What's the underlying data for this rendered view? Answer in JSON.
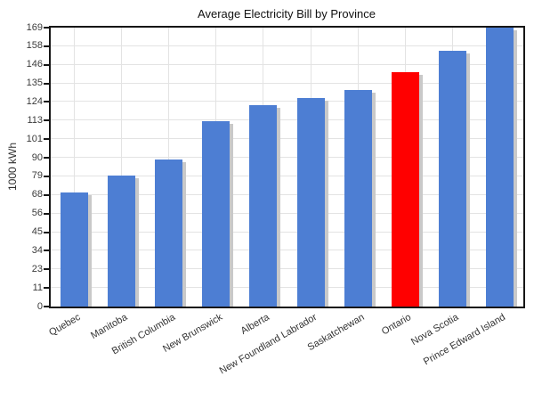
{
  "chart_data": {
    "type": "bar",
    "title": "Average Electricity Bill by Province",
    "xlabel": "",
    "ylabel": "1000 kWh",
    "categories": [
      "Quebec",
      "Manitoba",
      "British Columbia",
      "New Brunswick",
      "Alberta",
      "New Foundland Labrador",
      "Saskatchewan",
      "Ontario",
      "Nova Scotia",
      "Prince Edward Island"
    ],
    "values": [
      69,
      79,
      89,
      112,
      122,
      126,
      131,
      142,
      155,
      169
    ],
    "yticks": [
      "0",
      "11",
      "23",
      "34",
      "45",
      "56",
      "68",
      "79",
      "90",
      "101",
      "113",
      "124",
      "135",
      "146",
      "158",
      "169"
    ],
    "ylim": [
      0,
      168.75
    ],
    "grid": true,
    "legend": false,
    "x_tick_rotation_deg": 30,
    "bar_color": "#4d7ed3",
    "highlight": {
      "category": "Ontario",
      "color": "#ff0000"
    },
    "shadow_color": "#c9c9c9",
    "axis_color": "#161616",
    "gridline_color": "#e3e3e3"
  }
}
